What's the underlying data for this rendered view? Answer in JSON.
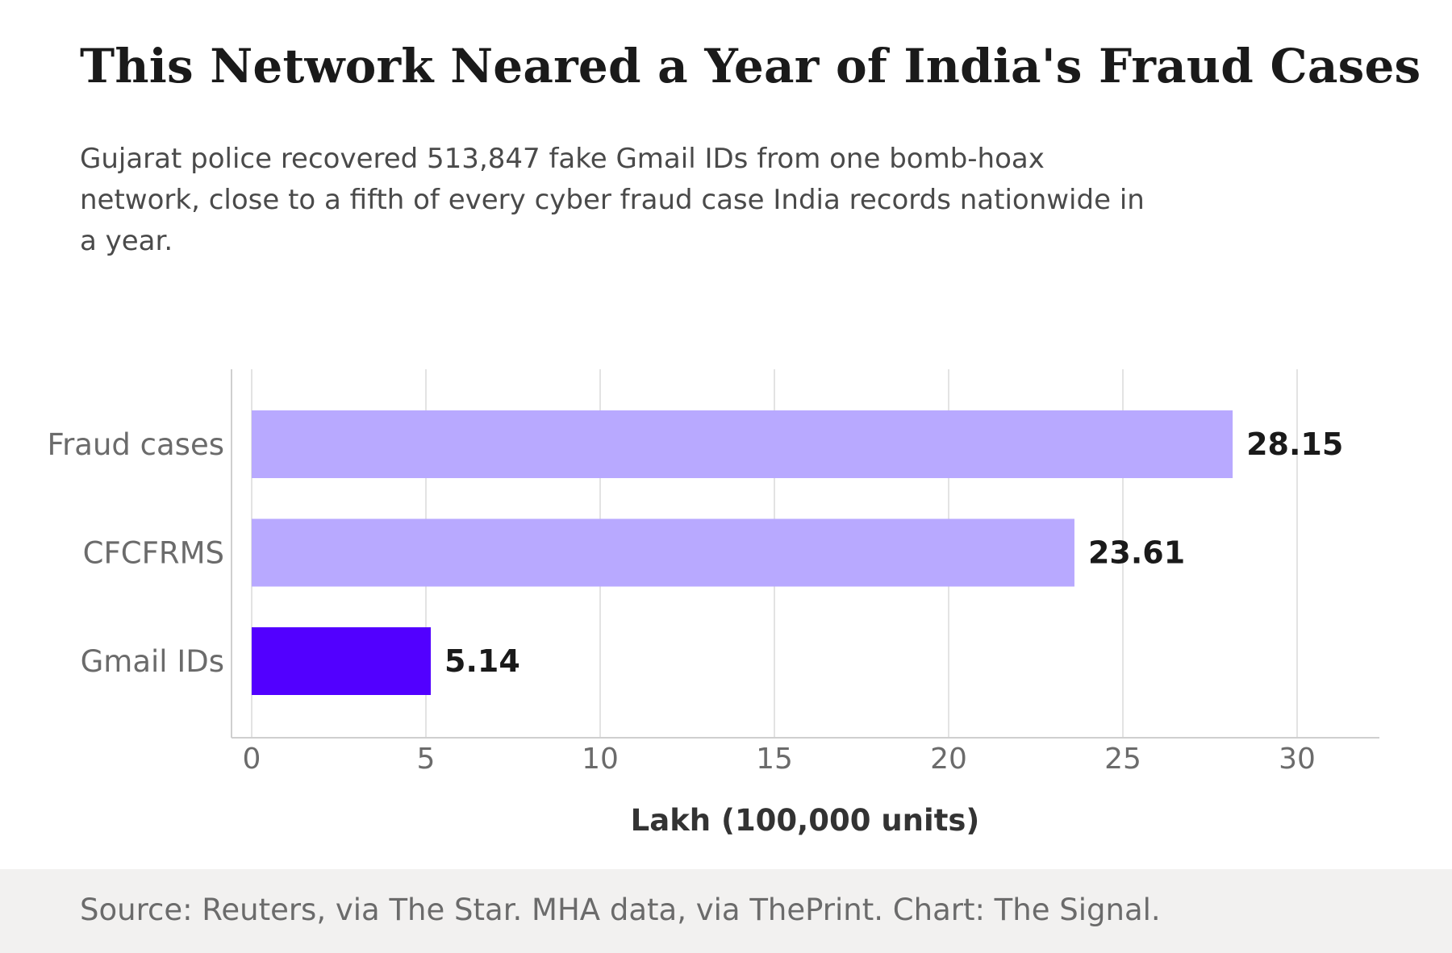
{
  "title": "This Network Neared a Year of India's Fraud Cases",
  "subtitle": "Gujarat police recovered 513,847 fake Gmail IDs from one bomb-hoax network, close to a fifth of every cyber fraud case India records nationwide in a year.",
  "source": "Source: Reuters, via The Star. MHA data, via ThePrint. Chart: The Signal.",
  "colors": {
    "bar": "#b8a9ff",
    "highlight": "#5200ff",
    "grid": "#e3e3e3",
    "axis": "#cfcfcf",
    "tick": "#6b6b6b",
    "label": "#1a1a1a"
  },
  "chart_data": {
    "type": "bar",
    "orientation": "horizontal",
    "categories": [
      "Fraud cases",
      "CFCFRMS",
      "Gmail IDs"
    ],
    "values": [
      28.15,
      23.61,
      5.14
    ],
    "value_labels": [
      "28.15",
      "23.61",
      "5.14"
    ],
    "highlight": "Gmail IDs",
    "xlabel": "Lakh (100,000 units)",
    "xlim": [
      0,
      32.3
    ],
    "xticks": [
      0,
      5,
      10,
      15,
      20,
      25,
      30
    ],
    "grid": "vertical"
  }
}
